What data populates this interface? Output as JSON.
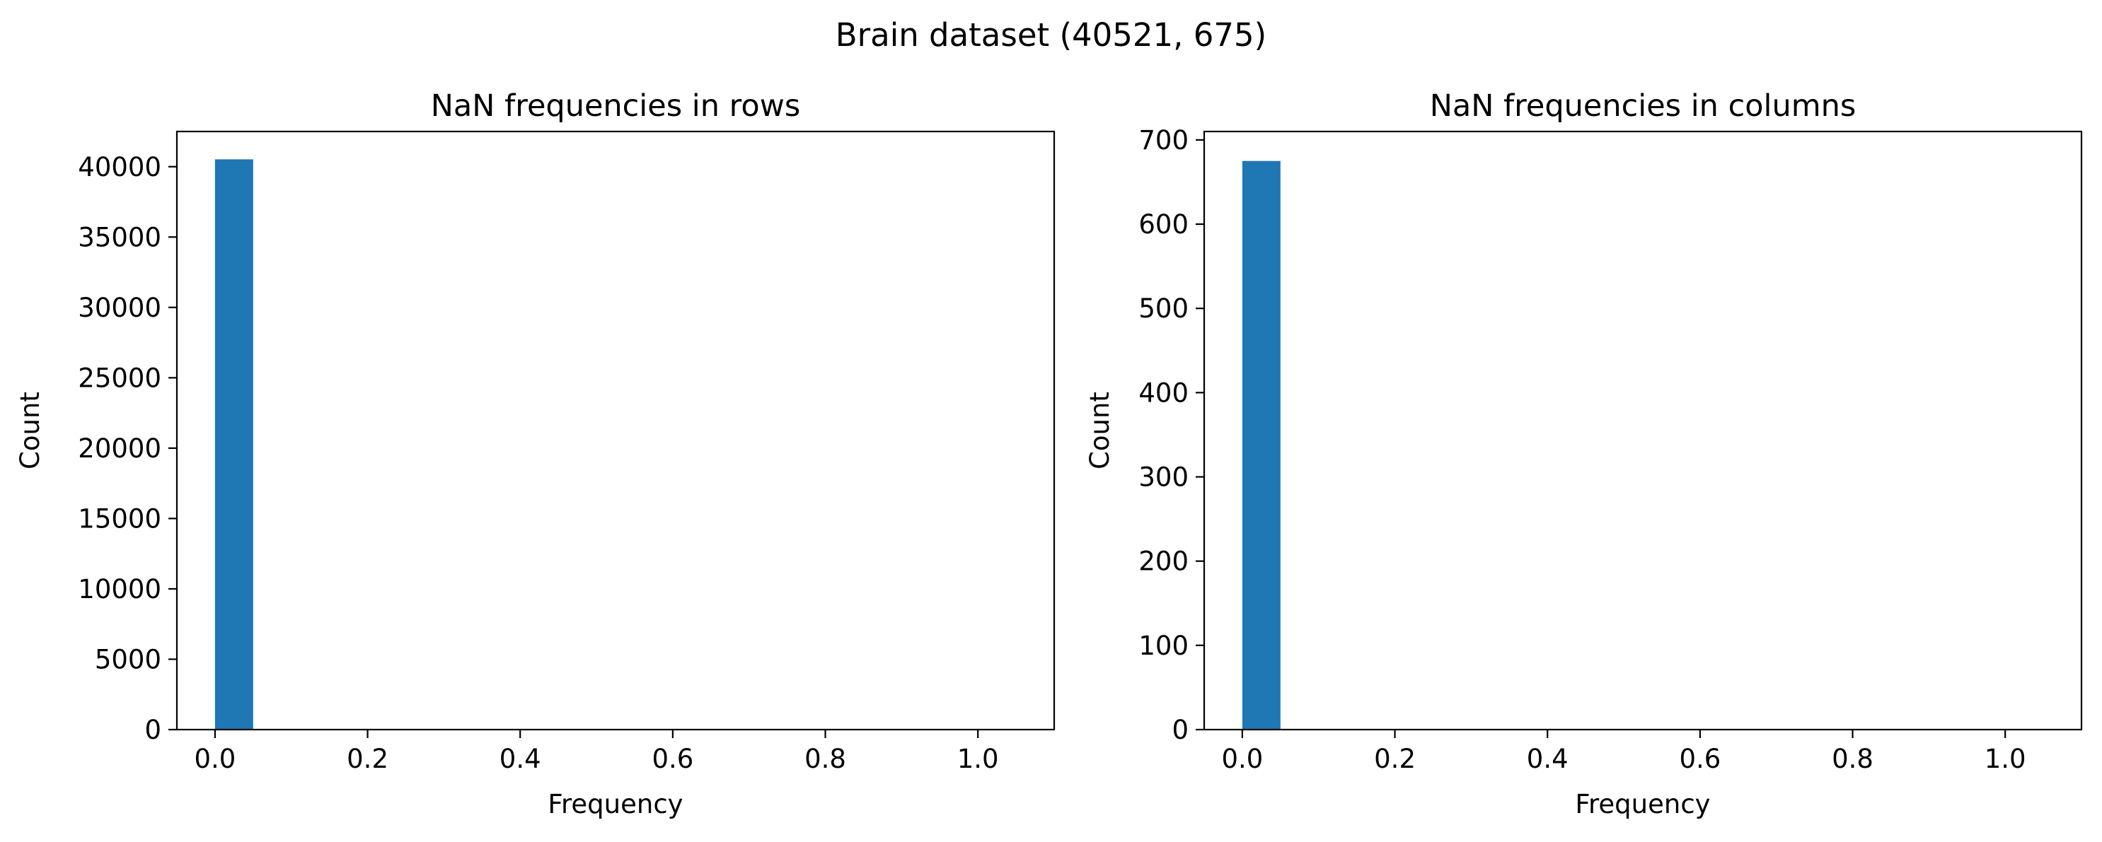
{
  "figure": {
    "suptitle": "Brain dataset (40521, 675)"
  },
  "colors": {
    "bar": "#1f77b4",
    "axes": "#000000",
    "background": "#ffffff"
  },
  "chart_data": [
    {
      "type": "bar",
      "title": "NaN frequencies in rows",
      "xlabel": "Frequency",
      "ylabel": "Count",
      "xlim": [
        -0.05,
        1.1
      ],
      "ylim": [
        0,
        42500
      ],
      "xticks": [
        0.0,
        0.2,
        0.4,
        0.6,
        0.8,
        1.0
      ],
      "xtick_labels": [
        "0.0",
        "0.2",
        "0.4",
        "0.6",
        "0.8",
        "1.0"
      ],
      "yticks": [
        0,
        5000,
        10000,
        15000,
        20000,
        25000,
        30000,
        35000,
        40000
      ],
      "ytick_labels": [
        "0",
        "5000",
        "10000",
        "15000",
        "20000",
        "25000",
        "30000",
        "35000",
        "40000"
      ],
      "bars": [
        {
          "x_start": 0.0,
          "x_end": 0.05,
          "value": 40521
        }
      ],
      "grid": false,
      "legend": "none"
    },
    {
      "type": "bar",
      "title": "NaN frequencies in columns",
      "xlabel": "Frequency",
      "ylabel": "Count",
      "xlim": [
        -0.05,
        1.1
      ],
      "ylim": [
        0,
        710
      ],
      "xticks": [
        0.0,
        0.2,
        0.4,
        0.6,
        0.8,
        1.0
      ],
      "xtick_labels": [
        "0.0",
        "0.2",
        "0.4",
        "0.6",
        "0.8",
        "1.0"
      ],
      "yticks": [
        0,
        100,
        200,
        300,
        400,
        500,
        600,
        700
      ],
      "ytick_labels": [
        "0",
        "100",
        "200",
        "300",
        "400",
        "500",
        "600",
        "700"
      ],
      "bars": [
        {
          "x_start": 0.0,
          "x_end": 0.05,
          "value": 675
        }
      ],
      "grid": false,
      "legend": "none"
    }
  ]
}
